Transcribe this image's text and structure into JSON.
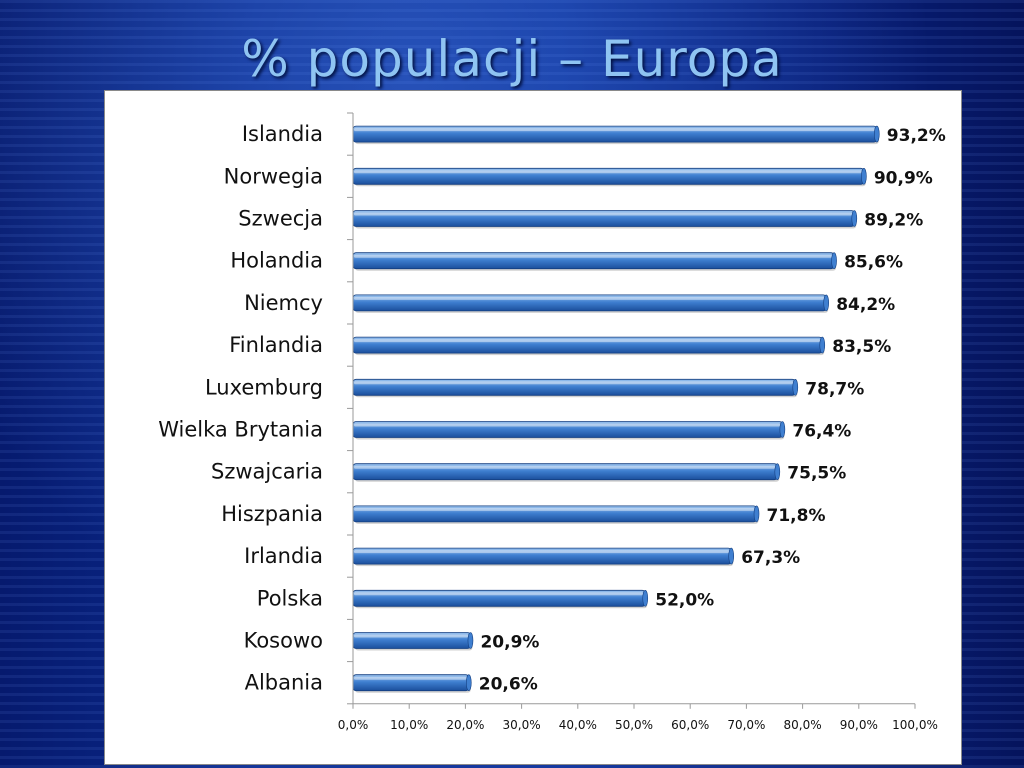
{
  "slide": {
    "title": "% populacji – Europa"
  },
  "colors": {
    "bar_light": "#9cc4ef",
    "bar_mid": "#3f7fd0",
    "bar_dark": "#1b4f9c",
    "bar_outline": "#143f80",
    "panel_background": "#ffffff"
  },
  "chart_data": {
    "type": "bar",
    "orientation": "horizontal",
    "categories": [
      "Islandia",
      "Norwegia",
      "Szwecja",
      "Holandia",
      "Niemcy",
      "Finlandia",
      "Luxemburg",
      "Wielka Brytania",
      "Szwajcaria",
      "Hiszpania",
      "Irlandia",
      "Polska",
      "Kosowo",
      "Albania"
    ],
    "values": [
      93.2,
      90.9,
      89.2,
      85.6,
      84.2,
      83.5,
      78.7,
      76.4,
      75.5,
      71.8,
      67.3,
      52.0,
      20.9,
      20.6
    ],
    "value_labels": [
      "93,2%",
      "90,9%",
      "89,2%",
      "85,6%",
      "84,2%",
      "83,5%",
      "78,7%",
      "76,4%",
      "75,5%",
      "71,8%",
      "67,3%",
      "52,0%",
      "20,9%",
      "20,6%"
    ],
    "xlim": [
      0,
      100
    ],
    "x_ticks": [
      "0,0%",
      "10,0%",
      "20,0%",
      "30,0%",
      "40,0%",
      "50,0%",
      "60,0%",
      "70,0%",
      "80,0%",
      "90,0%",
      "100,0%"
    ],
    "grid": false,
    "legend": "none"
  }
}
